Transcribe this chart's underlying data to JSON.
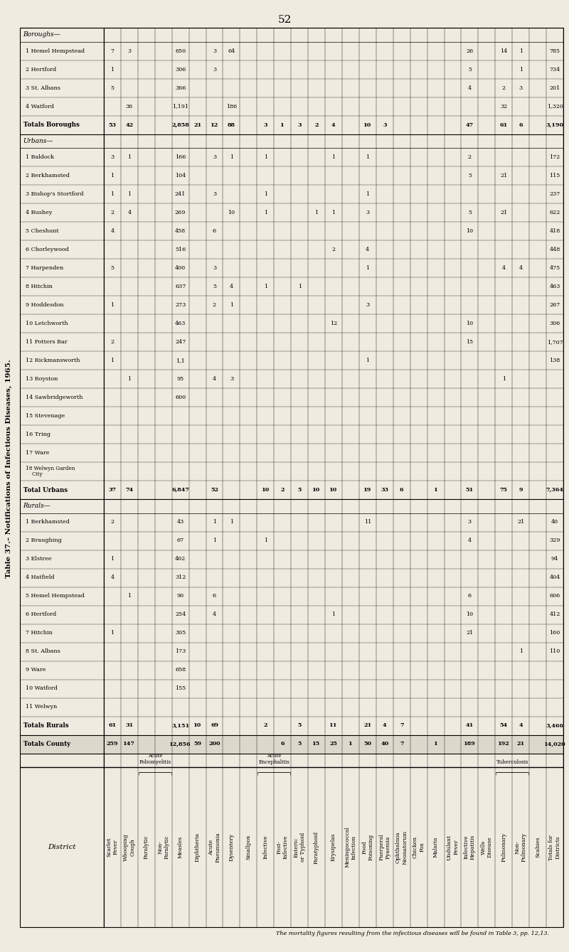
{
  "page_number": "52",
  "title": "Table 37.– Notifications of Infectious Diseases, 1965.",
  "footer": "The mortality figures resulting from the infectious diseases will be found in Table 3, pp. 12,13.",
  "bg_color": "#f0ebe0",
  "table_title_rotated": "Table 37.– Notifications of Infectious Diseases, 1965.",
  "col_headers": [
    "Scarlet\nFever",
    "Whooping\nCough",
    "Paralytic",
    "Non-\nParalytic",
    "Measles",
    "Diphtheria",
    "Acute\nPneumonia",
    "Dysentery",
    "Smallpox",
    "Infective",
    "Post-\nInfective",
    "Enteric\nor Typhoid",
    "Paratyphoid",
    "Erysipelas",
    "Meningococcal\nInfection",
    "Food\nPoisoning",
    "Puerperal\nPyaemia",
    "Ophthalmia\nNeonatorum",
    "Chicken\nPox",
    "Malaria",
    "Undulant\nFever",
    "Infective\nHepatitis",
    "Wells\nDisease",
    "Pulmonary",
    "Non-\nPulmonary",
    "Scabies",
    "Totals for\nDistricts"
  ],
  "group_spans": [
    {
      "label": "Acute\nPoliomyelitis",
      "start": 2,
      "end": 3
    },
    {
      "label": "Acute\nEncephalitis",
      "start": 9,
      "end": 10
    },
    {
      "label": "Tuberculosis",
      "start": 23,
      "end": 24
    }
  ],
  "rows": [
    {
      "type": "section",
      "name": "Boroughs—"
    },
    {
      "type": "data",
      "name": "1 Hemel Hempstead",
      "vals": [
        "7",
        "3",
        "",
        "",
        "650",
        "",
        "3",
        "64",
        "",
        "",
        "",
        "",
        "",
        "",
        "",
        "",
        "",
        "",
        "",
        "",
        "",
        "26",
        "",
        "14",
        "1",
        "",
        "785"
      ]
    },
    {
      "type": "data",
      "name": "2 Hertford",
      "vals": [
        "1",
        "",
        "",
        "",
        "306",
        "",
        "3",
        "",
        "",
        "",
        "",
        "",
        "",
        "",
        "",
        "",
        "",
        "",
        "",
        "",
        "",
        "5",
        "",
        "",
        "1",
        "",
        "734"
      ]
    },
    {
      "type": "data",
      "name": "3 St. Albans",
      "vals": [
        "5",
        "",
        "",
        "",
        "366",
        "",
        "",
        "",
        "",
        "",
        "",
        "",
        "",
        "",
        "",
        "",
        "",
        "",
        "",
        "",
        "",
        "4",
        "",
        "2",
        "3",
        "",
        "201"
      ]
    },
    {
      "type": "data",
      "name": "4 Watford",
      "vals": [
        "",
        "36",
        "",
        "",
        "1,191",
        "",
        "",
        "186",
        "",
        "",
        "",
        "",
        "",
        "",
        "",
        "",
        "",
        "",
        "",
        "",
        "",
        "",
        "",
        "32",
        "",
        "",
        "1,320"
      ]
    },
    {
      "type": "total",
      "name": "Totals Boroughs",
      "vals": [
        "53",
        "42",
        "",
        "",
        "2,858",
        "21",
        "12",
        "88",
        "",
        "3",
        "1",
        "3",
        "2",
        "4",
        "",
        "10",
        "3",
        "",
        "",
        "",
        "",
        "47",
        "",
        "61",
        "6",
        "",
        "3,190"
      ]
    },
    {
      "type": "section",
      "name": "Urbans—"
    },
    {
      "type": "data",
      "name": "1 Baldock",
      "vals": [
        "3",
        "1",
        "",
        "",
        "166",
        "",
        "3",
        "1",
        "",
        "1",
        "",
        "",
        "",
        "1",
        "",
        "1",
        "",
        "",
        "",
        "",
        "",
        "2",
        "",
        "",
        "",
        "",
        "172"
      ]
    },
    {
      "type": "data",
      "name": "2 Berkhamsted",
      "vals": [
        "1",
        "",
        "",
        "",
        "104",
        "",
        "",
        "",
        "",
        "",
        "",
        "",
        "",
        "",
        "",
        "",
        "",
        "",
        "",
        "",
        "",
        "5",
        "",
        "21",
        "",
        "",
        "115"
      ]
    },
    {
      "type": "data",
      "name": "3 Bishop's Stortford",
      "vals": [
        "1",
        "1",
        "",
        "",
        "241",
        "",
        "3",
        "",
        "",
        "1",
        "",
        "",
        "",
        "",
        "",
        "1",
        "",
        "",
        "",
        "",
        "",
        "",
        "",
        "",
        "",
        "",
        "237"
      ]
    },
    {
      "type": "data",
      "name": "4 Bushey",
      "vals": [
        "2",
        "4",
        "",
        "",
        "269",
        "",
        "",
        "10",
        "",
        "1",
        "",
        "",
        "1",
        "1",
        "",
        "3",
        "",
        "",
        "",
        "",
        "",
        "5",
        "",
        "21",
        "",
        "",
        "622"
      ]
    },
    {
      "type": "data",
      "name": "5 Cheshunt",
      "vals": [
        "4",
        "",
        "",
        "",
        "458",
        "",
        "6",
        "",
        "",
        "",
        "",
        "",
        "",
        "",
        "",
        "",
        "",
        "",
        "",
        "",
        "",
        "10",
        "",
        "",
        "",
        "",
        "418"
      ]
    },
    {
      "type": "data",
      "name": "6 Chorleywood",
      "vals": [
        "",
        "",
        "",
        "",
        "516",
        "",
        "",
        "",
        "",
        "",
        "",
        "",
        "",
        "2",
        "",
        "4",
        "",
        "",
        "",
        "",
        "",
        "",
        "",
        "",
        "",
        "",
        "448"
      ]
    },
    {
      "type": "data",
      "name": "7 Harpenden",
      "vals": [
        "5",
        "",
        "",
        "",
        "400",
        "",
        "3",
        "",
        "",
        "",
        "",
        "",
        "",
        "",
        "",
        "1",
        "",
        "",
        "",
        "",
        "",
        "",
        "",
        "4",
        "4",
        "",
        "475"
      ]
    },
    {
      "type": "data",
      "name": "8 Hitchin",
      "vals": [
        "",
        "",
        "",
        "",
        "637",
        "",
        "5",
        "4",
        "",
        "1",
        "",
        "1",
        "",
        "",
        "",
        "",
        "",
        "",
        "",
        "",
        "",
        "",
        "",
        "",
        "",
        "",
        "463"
      ]
    },
    {
      "type": "data",
      "name": "9 Hoddesdon",
      "vals": [
        "1",
        "",
        "",
        "",
        "273",
        "",
        "2",
        "1",
        "",
        "",
        "",
        "",
        "",
        "",
        "",
        "3",
        "",
        "",
        "",
        "",
        "",
        "",
        "",
        "",
        "",
        "",
        "267"
      ]
    },
    {
      "type": "data",
      "name": "10 Letchworth",
      "vals": [
        "",
        "",
        "",
        "",
        "463",
        "",
        "",
        "",
        "",
        "",
        "",
        "",
        "",
        "12",
        "",
        "",
        "",
        "",
        "",
        "",
        "",
        "10",
        "",
        "",
        "",
        "",
        "306"
      ]
    },
    {
      "type": "data",
      "name": "11 Potters Bar",
      "vals": [
        "2",
        "",
        "",
        "",
        "247",
        "",
        "",
        "",
        "",
        "",
        "",
        "",
        "",
        "",
        "",
        "",
        "",
        "",
        "",
        "",
        "",
        "15",
        "",
        "",
        "",
        "",
        "1,707"
      ]
    },
    {
      "type": "data",
      "name": "12 Rickmansworth",
      "vals": [
        "1",
        "",
        "",
        "",
        "1,1",
        "",
        "",
        "",
        "",
        "",
        "",
        "",
        "",
        "",
        "",
        "1",
        "",
        "",
        "",
        "",
        "",
        "",
        "",
        "",
        "",
        "",
        "138"
      ]
    },
    {
      "type": "data",
      "name": "13 Royston",
      "vals": [
        "",
        "1",
        "",
        "",
        "95",
        "",
        "4",
        "3",
        "",
        "",
        "",
        "",
        "",
        "",
        "",
        "",
        "",
        "",
        "",
        "",
        "",
        "",
        "",
        "1",
        "",
        "",
        ""
      ]
    },
    {
      "type": "data",
      "name": "14 Sawbridgeworth",
      "vals": [
        "",
        "",
        "",
        "",
        "600",
        "",
        "",
        "",
        "",
        "",
        "",
        "",
        "",
        "",
        "",
        "",
        "",
        "",
        "",
        "",
        "",
        "",
        "",
        "",
        "",
        "",
        ""
      ]
    },
    {
      "type": "data",
      "name": "15 Stevenage",
      "vals": [
        "",
        "",
        "",
        "",
        "",
        "",
        "",
        "",
        "",
        "",
        "",
        "",
        "",
        "",
        "",
        "",
        "",
        "",
        "",
        "",
        "",
        "",
        "",
        "",
        "",
        "",
        ""
      ]
    },
    {
      "type": "data",
      "name": "16 Tring",
      "vals": [
        "",
        "",
        "",
        "",
        "",
        "",
        "",
        "",
        "",
        "",
        "",
        "",
        "",
        "",
        "",
        "",
        "",
        "",
        "",
        "",
        "",
        "",
        "",
        "",
        "",
        "",
        ""
      ]
    },
    {
      "type": "data",
      "name": "17 Ware",
      "vals": [
        "",
        "",
        "",
        "",
        "",
        "",
        "",
        "",
        "",
        "",
        "",
        "",
        "",
        "",
        "",
        "",
        "",
        "",
        "",
        "",
        "",
        "",
        "",
        "",
        "",
        "",
        ""
      ]
    },
    {
      "type": "data",
      "name": "18 Welwyn Garden\n    City",
      "vals": [
        "",
        "",
        "",
        "",
        "",
        "",
        "",
        "",
        "",
        "",
        "",
        "",
        "",
        "",
        "",
        "",
        "",
        "",
        "",
        "",
        "",
        "",
        "",
        "",
        "",
        "",
        ""
      ]
    },
    {
      "type": "total",
      "name": "Total Urbans",
      "vals": [
        "37",
        "74",
        "",
        "",
        "6,847",
        "",
        "52",
        "",
        "",
        "10",
        "2",
        "5",
        "10",
        "10",
        "",
        "19",
        "33",
        "6",
        "",
        "1",
        "",
        "51",
        "",
        "75",
        "9",
        "",
        "7,364"
      ]
    },
    {
      "type": "section",
      "name": "Rurals—"
    },
    {
      "type": "data",
      "name": "1 Berkhamsted",
      "vals": [
        "2",
        "",
        "",
        "",
        "43",
        "",
        "1",
        "1",
        "",
        "",
        "",
        "",
        "",
        "",
        "",
        "11",
        "",
        "",
        "",
        "",
        "",
        "3",
        "",
        "",
        "21",
        "",
        "40"
      ]
    },
    {
      "type": "data",
      "name": "2 Braughing",
      "vals": [
        "",
        "",
        "",
        "",
        "67",
        "",
        "1",
        "",
        "",
        "1",
        "",
        "",
        "",
        "",
        "",
        "",
        "",
        "",
        "",
        "",
        "",
        "4",
        "",
        "",
        "",
        "",
        "329"
      ]
    },
    {
      "type": "data",
      "name": "3 Elstree",
      "vals": [
        "1",
        "",
        "",
        "",
        "402",
        "",
        "",
        "",
        "",
        "",
        "",
        "",
        "",
        "",
        "",
        "",
        "",
        "",
        "",
        "",
        "",
        "",
        "",
        "",
        "",
        "",
        "94"
      ]
    },
    {
      "type": "data",
      "name": "4 Hatfield",
      "vals": [
        "4",
        "",
        "",
        "",
        "312",
        "",
        "",
        "",
        "",
        "",
        "",
        "",
        "",
        "",
        "",
        "",
        "",
        "",
        "",
        "",
        "",
        "",
        "",
        "",
        "",
        "",
        "404"
      ]
    },
    {
      "type": "data",
      "name": "5 Hemel Hempstead",
      "vals": [
        "",
        "1",
        "",
        "",
        "90",
        "",
        "6",
        "",
        "",
        "",
        "",
        "",
        "",
        "",
        "",
        "",
        "",
        "",
        "",
        "",
        "",
        "6",
        "",
        "",
        "",
        "",
        "606"
      ]
    },
    {
      "type": "data",
      "name": "6 Hertford",
      "vals": [
        "",
        "",
        "",
        "",
        "254",
        "",
        "4",
        "",
        "",
        "",
        "",
        "",
        "",
        "1",
        "",
        "",
        "",
        "",
        "",
        "",
        "",
        "10",
        "",
        "",
        "",
        "",
        "412"
      ]
    },
    {
      "type": "data",
      "name": "7 Hitchin",
      "vals": [
        "1",
        "",
        "",
        "",
        "305",
        "",
        "",
        "",
        "",
        "",
        "",
        "",
        "",
        "",
        "",
        "",
        "",
        "",
        "",
        "",
        "",
        "21",
        "",
        "",
        "",
        "",
        "160"
      ]
    },
    {
      "type": "data",
      "name": "8 St. Albans",
      "vals": [
        "",
        "",
        "",
        "",
        "173",
        "",
        "",
        "",
        "",
        "",
        "",
        "",
        "",
        "",
        "",
        "",
        "",
        "",
        "",
        "",
        "",
        "",
        "",
        "",
        "1",
        "",
        "110"
      ]
    },
    {
      "type": "data",
      "name": "9 Ware",
      "vals": [
        "",
        "",
        "",
        "",
        "658",
        "",
        "",
        "",
        "",
        "",
        "",
        "",
        "",
        "",
        "",
        "",
        "",
        "",
        "",
        "",
        "",
        "",
        "",
        "",
        "",
        "",
        ""
      ]
    },
    {
      "type": "data",
      "name": "10 Watford",
      "vals": [
        "",
        "",
        "",
        "",
        "155",
        "",
        "",
        "",
        "",
        "",
        "",
        "",
        "",
        "",
        "",
        "",
        "",
        "",
        "",
        "",
        "",
        "",
        "",
        "",
        "",
        "",
        ""
      ]
    },
    {
      "type": "data",
      "name": "11 Welwyn",
      "vals": [
        "",
        "",
        "",
        "",
        "",
        "",
        "",
        "",
        "",
        "",
        "",
        "",
        "",
        "",
        "",
        "",
        "",
        "",
        "",
        "",
        "",
        "",
        "",
        "",
        "",
        "",
        ""
      ]
    },
    {
      "type": "total",
      "name": "Totals Rurals",
      "vals": [
        "61",
        "31",
        "",
        "",
        "3,151",
        "10",
        "69",
        "",
        "",
        "2",
        "",
        "5",
        "",
        "11",
        "",
        "21",
        "4",
        "7",
        "",
        "",
        "",
        "41",
        "",
        "54",
        "4",
        "",
        "3,466"
      ]
    },
    {
      "type": "county",
      "name": "Totals County",
      "vals": [
        "259",
        "147",
        "",
        "",
        "12,856",
        "59",
        "200",
        "",
        "",
        "",
        "6",
        "5",
        "15",
        "25",
        "1",
        "50",
        "40",
        "7",
        "",
        "1",
        "",
        "189",
        "",
        "192",
        "21",
        "",
        "14,020"
      ]
    }
  ]
}
